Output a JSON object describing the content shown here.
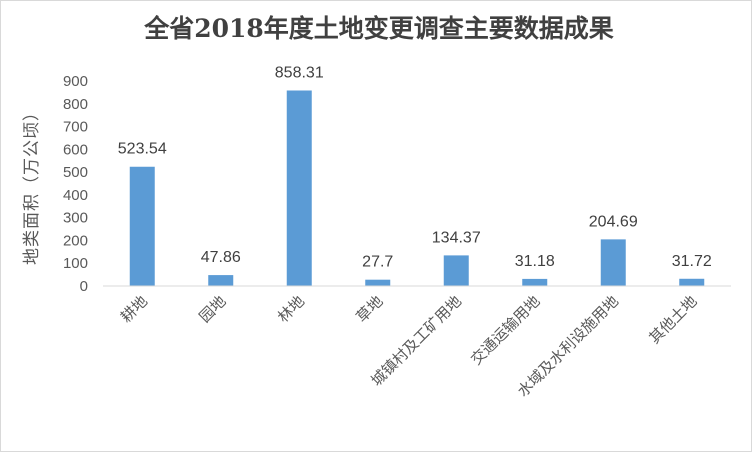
{
  "chart_data": {
    "type": "bar",
    "title": "全省2018年度土地变更调查主要数据成果",
    "xlabel": "",
    "ylabel": "地类面积（万公顷）",
    "categories": [
      "耕地",
      "园地",
      "林地",
      "草地",
      "城镇村及工矿用地",
      "交通运输用地",
      "水域及水利设施用地",
      "其他土地"
    ],
    "values": [
      523.54,
      47.86,
      858.31,
      27.7,
      134.37,
      31.18,
      204.69,
      31.72
    ],
    "data_labels": [
      "523.54",
      "47.86",
      "858.31",
      "27.7",
      "134.37",
      "31.18",
      "204.69",
      "31.72"
    ],
    "ylim": [
      0,
      900
    ],
    "yticks": [
      0,
      100,
      200,
      300,
      400,
      500,
      600,
      700,
      800,
      900
    ],
    "grid": false,
    "legend": "none",
    "bar_color": "#5b9bd5"
  }
}
